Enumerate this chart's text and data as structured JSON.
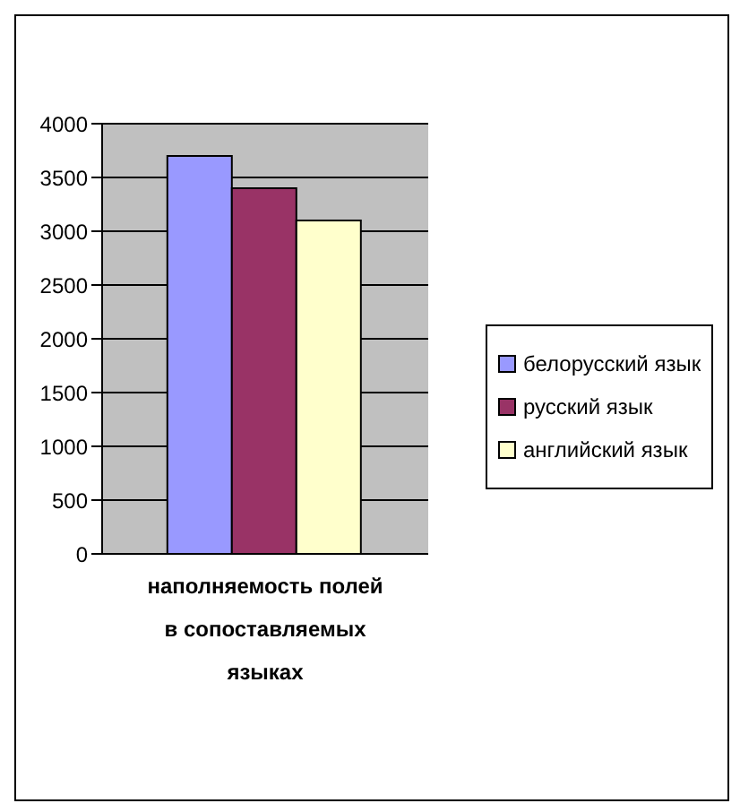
{
  "chart_data": {
    "type": "bar",
    "categories": [
      "наполняемость полей в сопоставляемых языках"
    ],
    "series": [
      {
        "name": "белорусский язык",
        "color": "#9999ff",
        "values": [
          3700
        ]
      },
      {
        "name": "русский язык",
        "color": "#993366",
        "values": [
          3400
        ]
      },
      {
        "name": "английский язык",
        "color": "#ffffcc",
        "values": [
          3100
        ]
      }
    ],
    "ylim": [
      0,
      4000
    ],
    "yticks": [
      0,
      500,
      1000,
      1500,
      2000,
      2500,
      3000,
      3500,
      4000
    ],
    "grid": "y",
    "legend": "right"
  }
}
